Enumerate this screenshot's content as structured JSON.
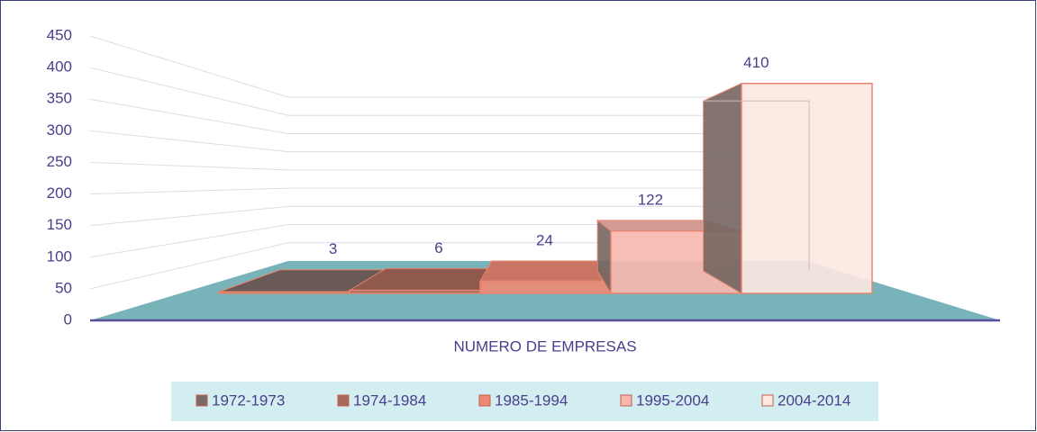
{
  "chart_data": {
    "type": "bar3d",
    "categories": [
      "NUMERO DE EMPRESAS"
    ],
    "series": [
      {
        "name": "1972-1973",
        "color": "#7b6a66",
        "values": [
          3
        ]
      },
      {
        "name": "1974-1984",
        "color": "#a8695c",
        "values": [
          6
        ]
      },
      {
        "name": "1985-1994",
        "color": "#ee8a74",
        "values": [
          24
        ]
      },
      {
        "name": "1995-2004",
        "color": "#f7b7ae",
        "values": [
          122
        ]
      },
      {
        "name": "2004-2014",
        "color": "#fde8e2",
        "values": [
          410
        ]
      }
    ],
    "ylim": [
      0,
      450
    ],
    "yticks": [
      0,
      50,
      100,
      150,
      200,
      250,
      300,
      350,
      400,
      450
    ],
    "grid": true,
    "legend": "bottom"
  }
}
